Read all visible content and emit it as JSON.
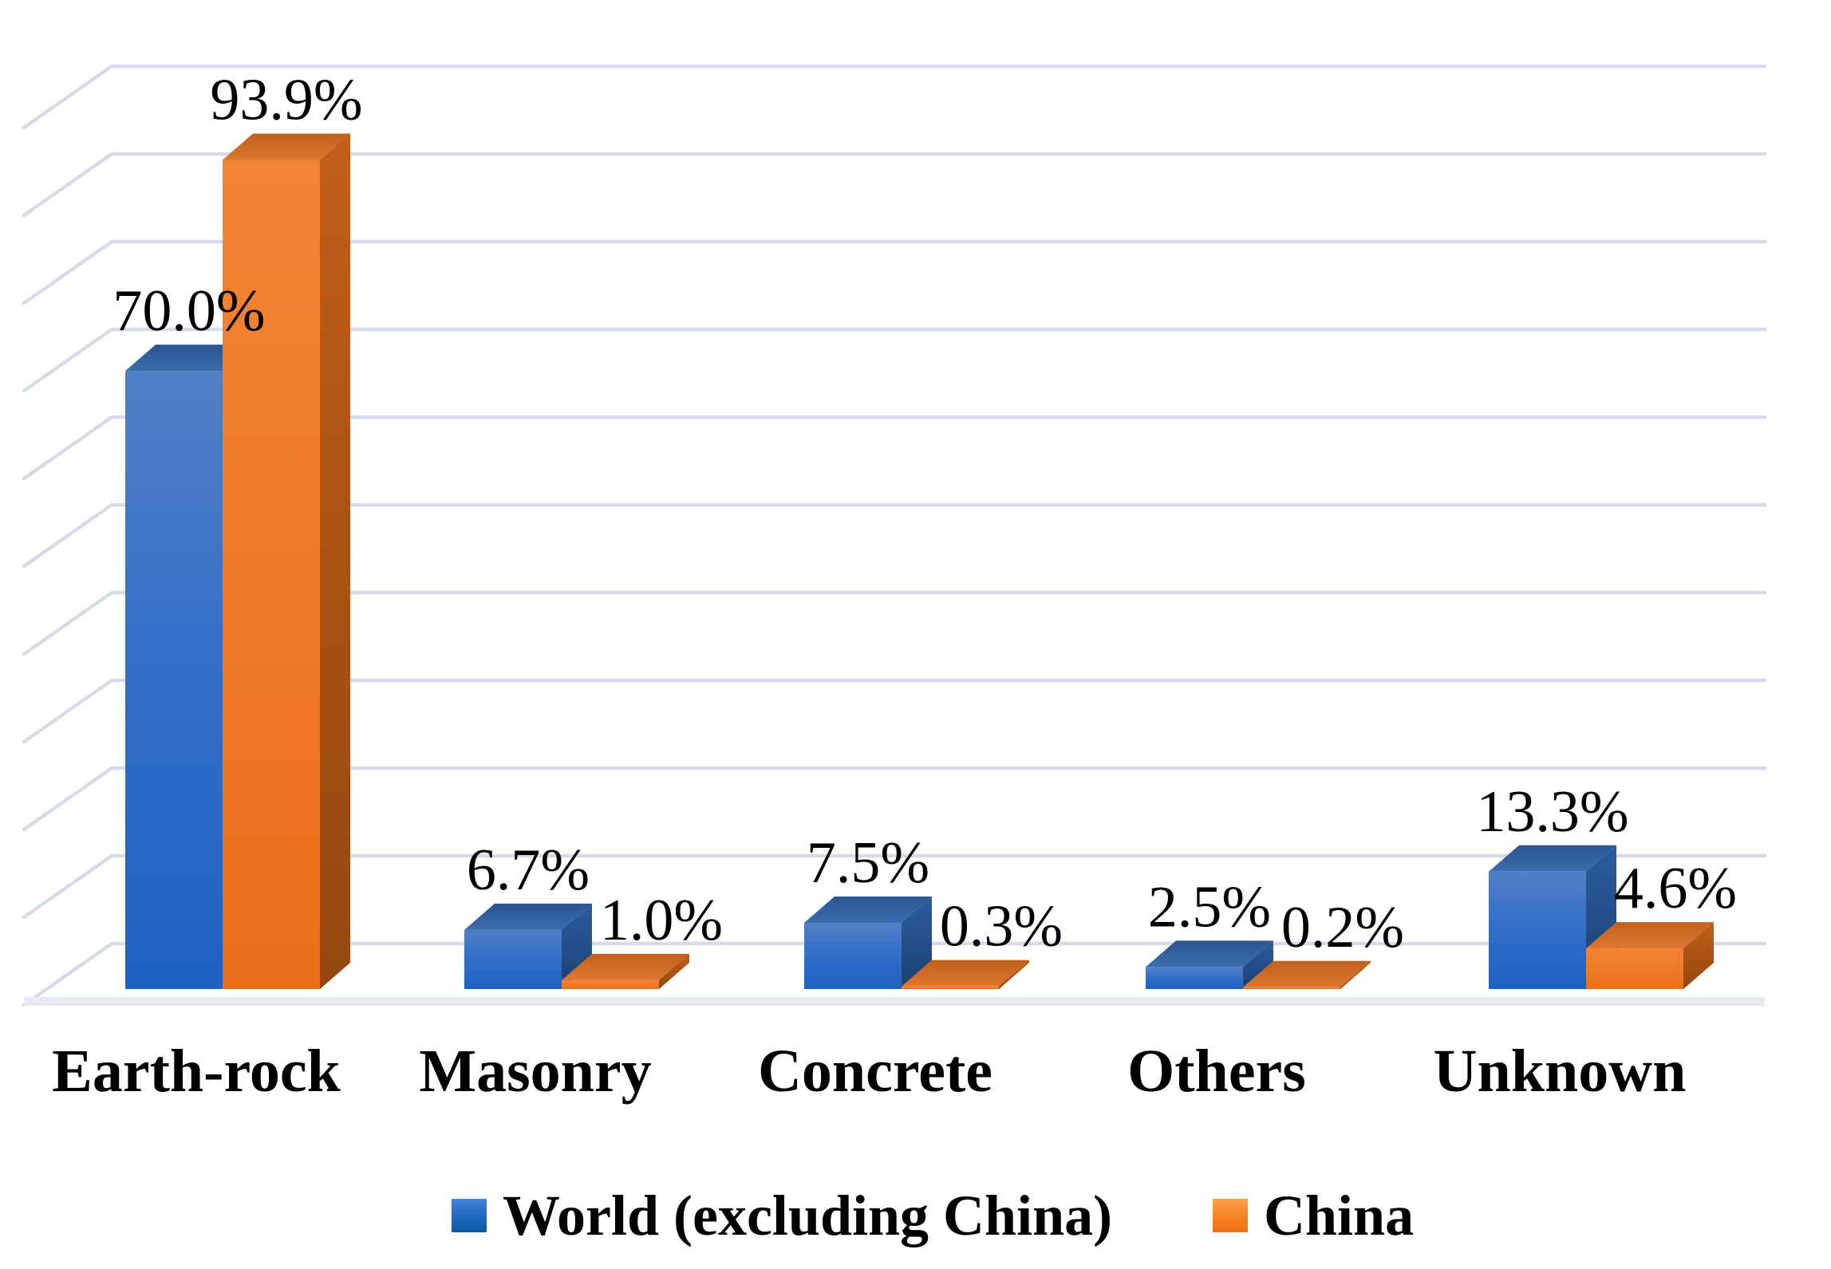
{
  "figure": {
    "background": "#FFFFFF",
    "description": "3D clustered column chart of dam types by construction material, World (excluding China) vs China"
  },
  "chart_data": {
    "type": "bar",
    "style": "3d-clustered-column",
    "categories": [
      "Earth-rock",
      "Masonry",
      "Concrete",
      "Others",
      "Unknown"
    ],
    "series": [
      {
        "name": "World (excluding China)",
        "color": "#2E6AC8",
        "values": [
          70.0,
          6.7,
          7.5,
          2.5,
          13.3
        ],
        "value_labels": [
          "70.0%",
          "6.7%",
          "7.5%",
          "2.5%",
          "13.3%"
        ]
      },
      {
        "name": "China",
        "color": "#EF7622",
        "values": [
          93.9,
          1.0,
          0.3,
          0.2,
          4.6
        ],
        "value_labels": [
          "93.9%",
          "1.0%",
          "0.3%",
          "0.2%",
          "4.6%"
        ]
      }
    ],
    "xlabel": "",
    "ylabel": "",
    "ylim": [
      0,
      100
    ],
    "gridline_step_percent": 10,
    "grid": "horizontal",
    "gridline_color": "#D7DBE7",
    "value_label_color": "#000000",
    "legend_position": "bottom",
    "value_suffix": "%"
  }
}
